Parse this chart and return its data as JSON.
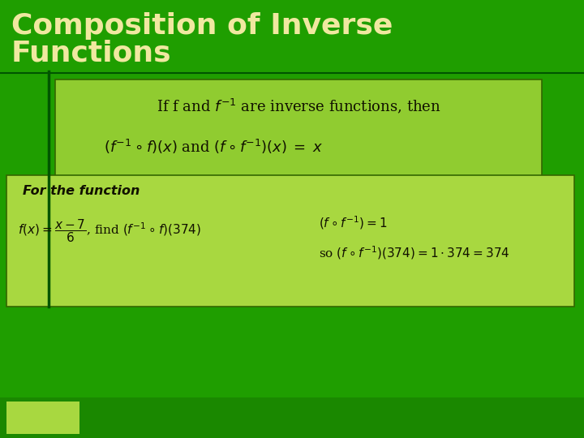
{
  "background_color": "#1f9e00",
  "title_line1": "Composition of Inverse",
  "title_line2": "Functions",
  "title_color": "#f0e8a0",
  "title_fontsize": 26,
  "box1_facecolor": "#90cc30",
  "box1_edgecolor": "#336600",
  "box2_facecolor": "#a8d840",
  "box2_edgecolor": "#336600",
  "text_color": "#111100",
  "line1_box1": "If f and $f^{-1}$ are inverse functions, then",
  "line2_box1": "$(f^{-1} \\circ f)(x)$ and $(f \\circ f^{-1})(x) \\;=\\; x$",
  "box2_header": "For the function",
  "box2_left": "$f(x) = \\dfrac{x-7}{6}$, find $(f^{-1} \\circ f)(374)$",
  "box2_right1": "$(f \\circ f^{-1}) = 1$",
  "box2_right2": "so $(f \\circ f^{-1})(374) = 1 \\cdot 374 = 374$",
  "vline_color": "#005500",
  "figsize": [
    7.2,
    5.4
  ],
  "dpi": 100
}
